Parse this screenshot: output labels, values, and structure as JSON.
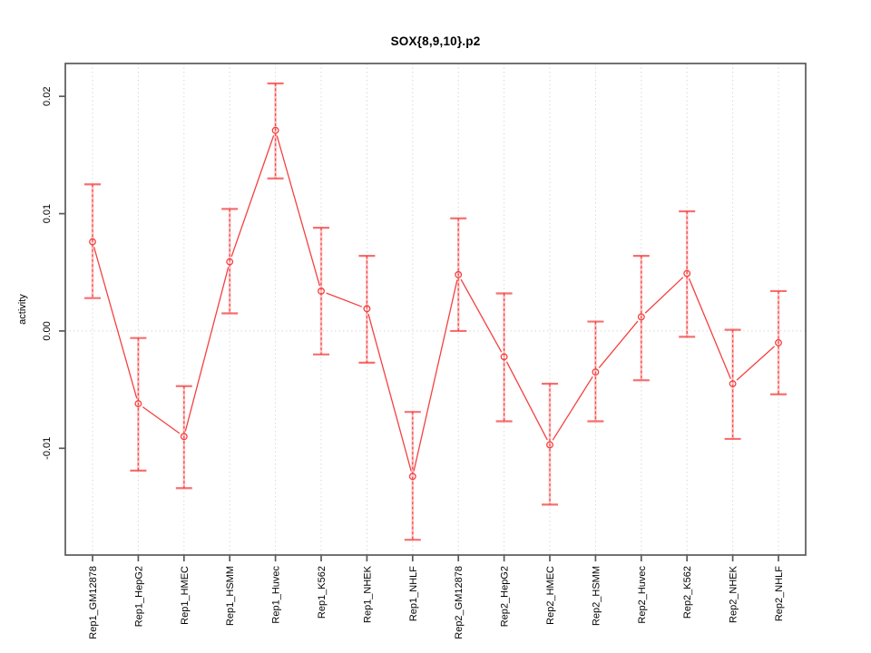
{
  "title": "SOX{8,9,10}.p2",
  "chart_data": {
    "type": "line",
    "title": "SOX{8,9,10}.p2",
    "xlabel": "",
    "ylabel": "activity",
    "ylim": [
      -0.0191,
      0.0228
    ],
    "y_ticks": [
      -0.01,
      0.0,
      0.01,
      0.02
    ],
    "y_tick_labels": [
      "-0.01",
      "0.00",
      "0.01",
      "0.02"
    ],
    "grid": "dotted vertical gridline at each category; dotted horizontal line at y=0; no legend",
    "legend": "none",
    "marker": "open-circle",
    "error_bars": "dashed vertical line with flat caps",
    "categories": [
      "Rep1_GM12878",
      "Rep1_HepG2",
      "Rep1_HMEC",
      "Rep1_HSMM",
      "Rep1_Huvec",
      "Rep1_K562",
      "Rep1_NHEK",
      "Rep1_NHLF",
      "Rep2_GM12878",
      "Rep2_HepG2",
      "Rep2_HMEC",
      "Rep2_HSMM",
      "Rep2_Huvec",
      "Rep2_K562",
      "Rep2_NHEK",
      "Rep2_NHLF"
    ],
    "series": [
      {
        "name": "activity",
        "values": [
          0.0076,
          -0.0062,
          -0.009,
          0.0059,
          0.0171,
          0.0034,
          0.0019,
          -0.0124,
          0.0048,
          -0.0022,
          -0.0097,
          -0.0035,
          0.0012,
          0.0049,
          -0.0045,
          -0.001
        ],
        "err_low": [
          0.0028,
          -0.0119,
          -0.0134,
          0.0015,
          0.013,
          -0.002,
          -0.0027,
          -0.0178,
          0.0,
          -0.0077,
          -0.0148,
          -0.0077,
          -0.0042,
          -0.0005,
          -0.0092,
          -0.0054
        ],
        "err_high": [
          0.0125,
          -0.0006,
          -0.0047,
          0.0104,
          0.0211,
          0.0088,
          0.0064,
          -0.0069,
          0.0096,
          0.0032,
          -0.0045,
          0.0008,
          0.0064,
          0.0102,
          0.0001,
          0.0034
        ]
      }
    ],
    "colors": {
      "line": "#f54040",
      "marker": "#f54040",
      "error_core": "#f54040",
      "error_soft": "#ff9a9a",
      "grid": "#d9d9d9",
      "box": "#595959",
      "text": "#000000",
      "background": "#ffffff"
    }
  }
}
